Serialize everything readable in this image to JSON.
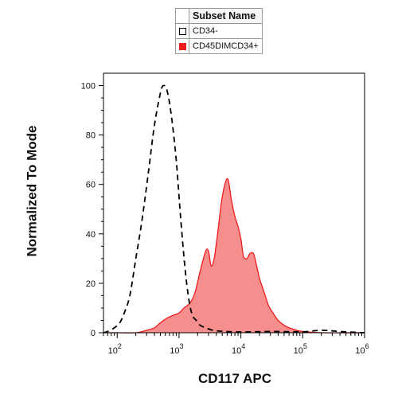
{
  "legend": {
    "header": "Subset Name",
    "items": [
      {
        "label": "CD34-",
        "swatch": "outline",
        "color": "#000000"
      },
      {
        "label": "CD45DIMCD34+",
        "swatch": "fill",
        "color": "#ee1c1c"
      }
    ]
  },
  "chart_data": {
    "type": "area",
    "xlabel": "CD117 APC",
    "ylabel": "Normalized To Mode",
    "xscale": "log",
    "xlim": [
      60,
      1000000
    ],
    "ylim": [
      0,
      105
    ],
    "y_ticks": [
      0,
      20,
      40,
      60,
      80,
      100
    ],
    "x_ticks": [
      {
        "value": 100,
        "label": "10",
        "exp": "2"
      },
      {
        "value": 1000,
        "label": "10",
        "exp": "3"
      },
      {
        "value": 10000,
        "label": "10",
        "exp": "4"
      },
      {
        "value": 100000,
        "label": "10",
        "exp": "5"
      },
      {
        "value": 1000000,
        "label": "10",
        "exp": "6"
      }
    ],
    "grid": false,
    "legend_position": "top-center",
    "series": [
      {
        "name": "CD34-",
        "style": "dashed-line",
        "color": "#000000",
        "points": [
          [
            60,
            0
          ],
          [
            70,
            0.5
          ],
          [
            90,
            2
          ],
          [
            110,
            4
          ],
          [
            130,
            8
          ],
          [
            160,
            15
          ],
          [
            200,
            30
          ],
          [
            250,
            45
          ],
          [
            320,
            65
          ],
          [
            400,
            84
          ],
          [
            500,
            97
          ],
          [
            560,
            100
          ],
          [
            640,
            98
          ],
          [
            750,
            88
          ],
          [
            900,
            70
          ],
          [
            1050,
            48
          ],
          [
            1250,
            26
          ],
          [
            1450,
            13
          ],
          [
            1650,
            7
          ],
          [
            1900,
            5
          ],
          [
            2200,
            3
          ],
          [
            2700,
            2
          ],
          [
            3500,
            1
          ],
          [
            5000,
            0.6
          ],
          [
            10000,
            0.3
          ],
          [
            30000,
            0.5
          ],
          [
            100000,
            0.4
          ],
          [
            200000,
            1
          ],
          [
            400000,
            0.5
          ],
          [
            1000000,
            0
          ]
        ]
      },
      {
        "name": "CD45DIMCD34+",
        "style": "filled-area",
        "color": "#ee1c1c",
        "fill": "#f78e8e",
        "points": [
          [
            60,
            0
          ],
          [
            100,
            0
          ],
          [
            200,
            0
          ],
          [
            300,
            1
          ],
          [
            400,
            2
          ],
          [
            500,
            4
          ],
          [
            650,
            6
          ],
          [
            800,
            7
          ],
          [
            1000,
            8
          ],
          [
            1200,
            10
          ],
          [
            1500,
            12
          ],
          [
            1800,
            16
          ],
          [
            2200,
            25
          ],
          [
            2700,
            33
          ],
          [
            3000,
            33
          ],
          [
            3300,
            27
          ],
          [
            3700,
            30
          ],
          [
            4200,
            40
          ],
          [
            4800,
            52
          ],
          [
            5500,
            60
          ],
          [
            6200,
            62
          ],
          [
            7000,
            54
          ],
          [
            8000,
            47
          ],
          [
            9000,
            43
          ],
          [
            10000,
            38
          ],
          [
            11000,
            31
          ],
          [
            12500,
            30
          ],
          [
            14000,
            32
          ],
          [
            16000,
            32
          ],
          [
            18000,
            27
          ],
          [
            20000,
            22
          ],
          [
            24000,
            16
          ],
          [
            28000,
            11
          ],
          [
            33000,
            8
          ],
          [
            40000,
            5
          ],
          [
            50000,
            3
          ],
          [
            60000,
            2
          ],
          [
            80000,
            1
          ],
          [
            100000,
            0.5
          ],
          [
            200000,
            0
          ],
          [
            1000000,
            0
          ]
        ]
      }
    ]
  }
}
